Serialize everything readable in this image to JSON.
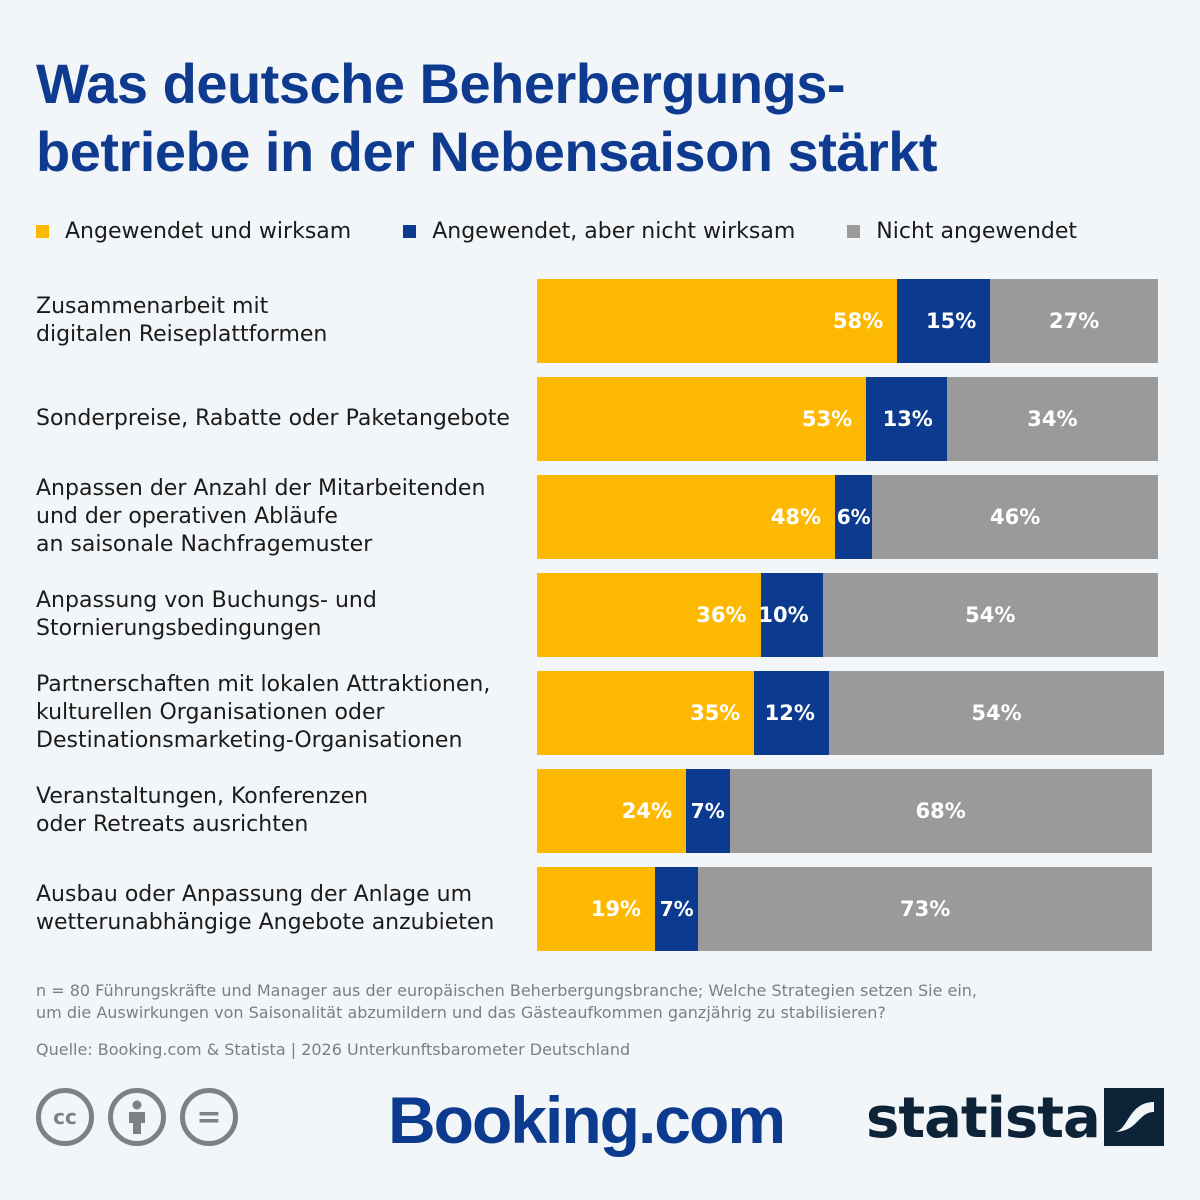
{
  "title_lines": [
    "Was deutsche Beherbergungs-",
    "betriebe in der Nebensaison stärkt"
  ],
  "legend": [
    {
      "label": "Angewendet und wirksam",
      "color": "#fdb902"
    },
    {
      "label": "Angewendet, aber nicht wirksam",
      "color": "#0b3a8e"
    },
    {
      "label": "Nicht angewendet",
      "color": "#9a9a9a"
    }
  ],
  "chart_data": {
    "type": "bar",
    "orientation": "horizontal",
    "stacked": true,
    "title": "Was deutsche Beherbergungsbetriebe in der Nebensaison stärkt",
    "categories": [
      "Zusammenarbeit mit digitalen Reiseplattformen",
      "Sonderpreise, Rabatte oder Paketangebote",
      "Anpassen der Anzahl der Mitarbeitenden und der operativen Abläufe an saisonale Nachfragemuster",
      "Anpassung von Buchungs- und Stornierungsbedingungen",
      "Partnerschaften mit lokalen Attraktionen, kulturellen Organisationen oder Destinationsmarketing-Organisationen",
      "Veranstaltungen, Konferenzen oder Retreats ausrichten",
      "Ausbau oder Anpassung der Anlage um wetterunabhängige Angebote anzubieten"
    ],
    "category_label_lines": [
      [
        "Zusammenarbeit mit",
        "digitalen Reiseplattformen"
      ],
      [
        "Sonderpreise, Rabatte oder Paketangebote"
      ],
      [
        "Anpassen der Anzahl der Mitarbeitenden",
        "und der operativen Abläufe",
        "an saisonale Nachfragemuster"
      ],
      [
        "Anpassung von Buchungs- und",
        "Stornierungsbedingungen"
      ],
      [
        "Partnerschaften mit lokalen Attraktionen,",
        "kulturellen Organisationen oder",
        "Destinationsmarketing-Organisationen"
      ],
      [
        "Veranstaltungen, Konferenzen",
        "oder Retreats ausrichten"
      ],
      [
        "Ausbau oder Anpassung der Anlage um",
        "wetterunabhängige Angebote anzubieten"
      ]
    ],
    "series": [
      {
        "name": "Angewendet und wirksam",
        "values": [
          58,
          53,
          48,
          36,
          35,
          24,
          19
        ],
        "color": "#fdb902"
      },
      {
        "name": "Angewendet, aber nicht wirksam",
        "values": [
          15,
          13,
          6,
          10,
          12,
          7,
          7
        ],
        "color": "#0b3a8e"
      },
      {
        "name": "Nicht angewendet",
        "values": [
          27,
          34,
          46,
          54,
          54,
          68,
          73
        ],
        "color": "#9a9a9a"
      }
    ],
    "unit": "%",
    "xlim": [
      0,
      100
    ],
    "legend_position": "top-left",
    "grid": false
  },
  "footnote_lines": [
    "n = 80 Führungskräfte und Manager aus der europäischen Beherbergungsbranche; Welche Strategien setzen Sie ein,",
    "um die Auswirkungen von Saisonalität abzumildern und das Gästeaufkommen ganzjährig zu stabilisieren?"
  ],
  "source": "Quelle: Booking.com & Statista | 2026 Unterkunftsbarometer Deutschland",
  "license_icons": [
    "cc-icon",
    "attribution-icon",
    "no-derivatives-icon"
  ],
  "license_icon_text": [
    "cc",
    "",
    "="
  ],
  "logos": {
    "booking": "Booking.com",
    "statista": "statista"
  }
}
